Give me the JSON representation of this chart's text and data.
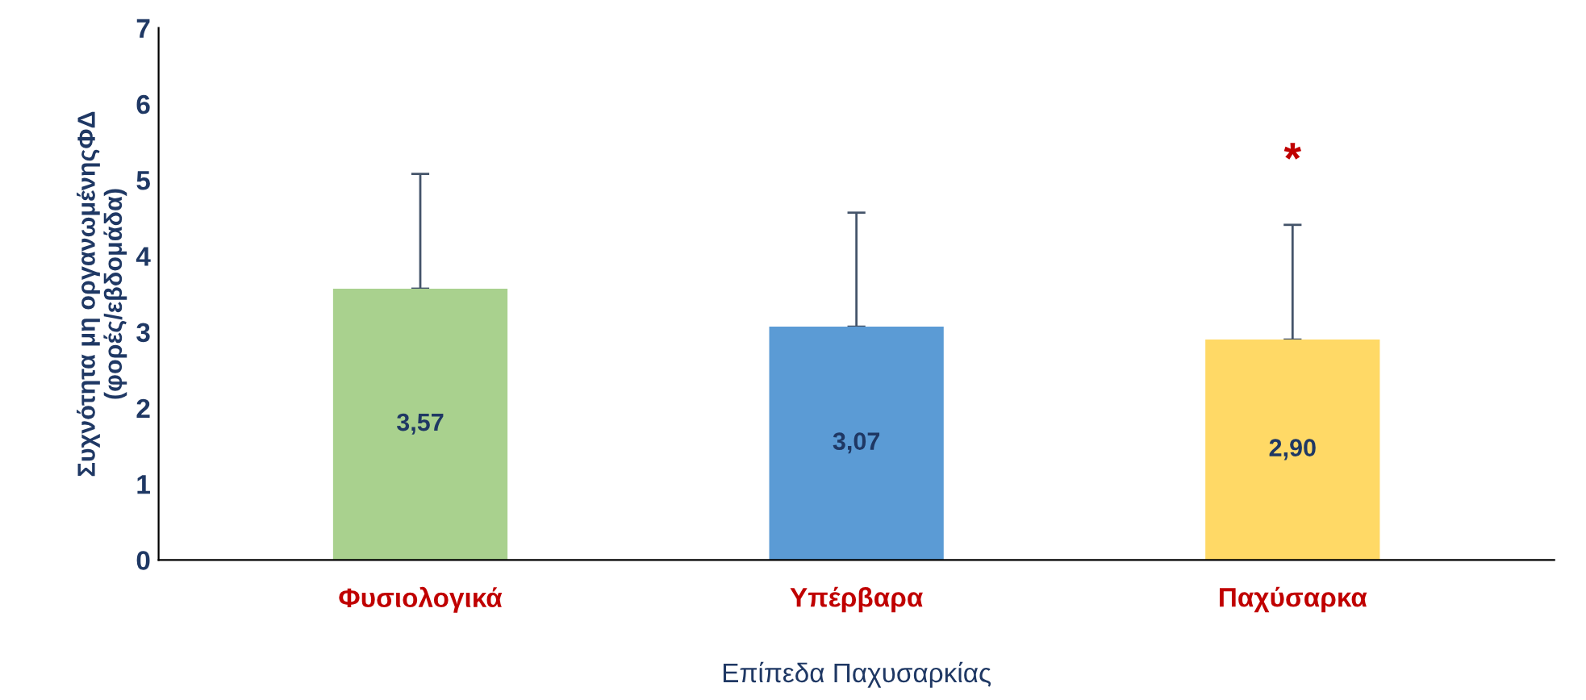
{
  "chart_data": {
    "type": "bar",
    "xlabel": "Επίπεδα Παχυσαρκίας",
    "ylabel": "Συχνότητα μη οργανωμένηςΦΔ\n(φορές/εβδομάδα)",
    "categories": [
      "Φυσιολογικά",
      "Υπέρβαρα",
      "Παχύσαρκα"
    ],
    "values": [
      3.57,
      3.07,
      2.9
    ],
    "colors": [
      "#a9d18e",
      "#5b9bd5",
      "#ffd966"
    ],
    "value_labels": [
      "3,57",
      "3,07",
      "2,90"
    ],
    "errors": [
      [
        3.57,
        5.08
      ],
      [
        3.07,
        4.57
      ],
      [
        2.9,
        4.41
      ]
    ],
    "annotations": [
      "*"
    ],
    "ylim": [
      0,
      7
    ],
    "yticks": [
      0,
      1,
      2,
      3,
      4,
      5,
      6,
      7
    ],
    "grid": false,
    "legend": false
  }
}
